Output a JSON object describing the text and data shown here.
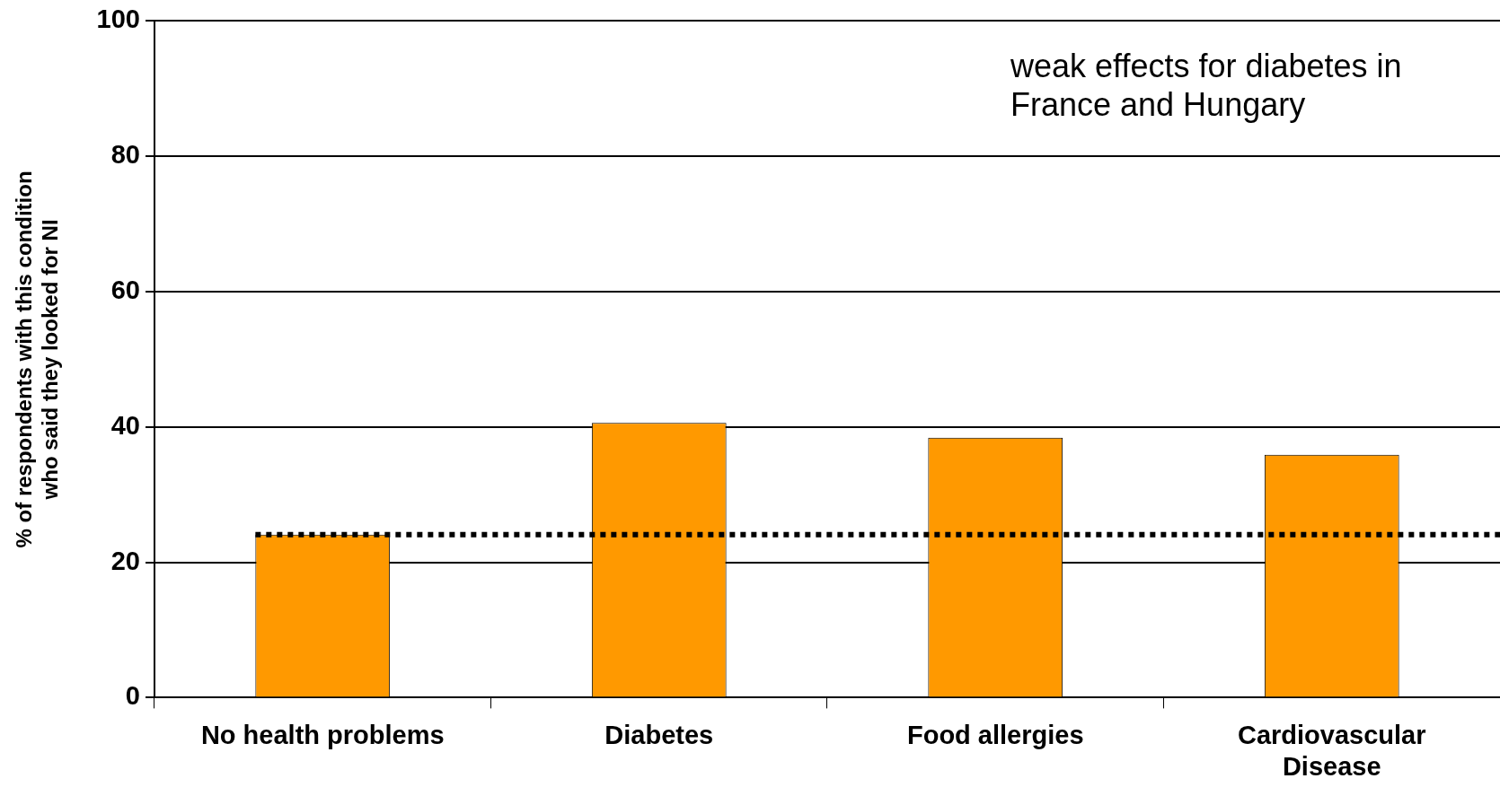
{
  "chart_data": {
    "type": "bar",
    "ylabel": "% of respondents with this condition who said they looked for NI",
    "categories": [
      "No health problems",
      "Diabetes",
      "Food allergies",
      "Cardiovascular Disease"
    ],
    "values": [
      24.1,
      40.6,
      38.4,
      35.9
    ],
    "color": "#ff9900",
    "ylim": [
      0,
      100
    ],
    "yticks": [
      0,
      20,
      40,
      60,
      80,
      100
    ],
    "grid": "y",
    "ref_lines": [
      {
        "axis": "y",
        "value": 24.1,
        "color": "#000000",
        "line_style": "dotted"
      }
    ],
    "annotations": [
      "weak effects for diabetes in France and Hungary"
    ]
  }
}
